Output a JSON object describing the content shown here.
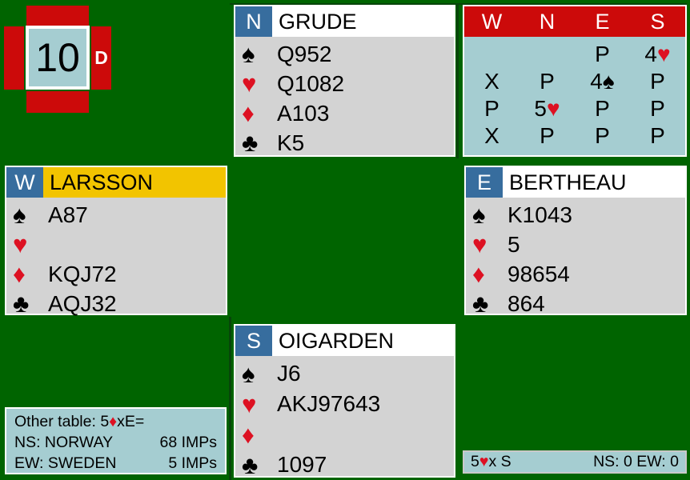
{
  "board": {
    "number": "10",
    "dealer_marker": "D"
  },
  "hands": {
    "north": {
      "seat": "N",
      "name": "GRUDE",
      "spades": "Q952",
      "hearts": "Q1082",
      "diamonds": "A103",
      "clubs": "K5"
    },
    "west": {
      "seat": "W",
      "name": "LARSSON",
      "spades": "A87",
      "hearts": "",
      "diamonds": "KQJ72",
      "clubs": "AQJ32"
    },
    "east": {
      "seat": "E",
      "name": "BERTHEAU",
      "spades": "K1043",
      "hearts": "5",
      "diamonds": "98654",
      "clubs": "864"
    },
    "south": {
      "seat": "S",
      "name": "OIGARDEN",
      "spades": "J6",
      "hearts": "AKJ97643",
      "diamonds": "",
      "clubs": "1097"
    }
  },
  "auction": {
    "columns": [
      "W",
      "N",
      "E",
      "S"
    ],
    "rows": [
      [
        "",
        "",
        "P",
        "4♥"
      ],
      [
        "X",
        "P",
        "4♠",
        "P"
      ],
      [
        "P",
        "5♥",
        "P",
        "P"
      ],
      [
        "X",
        "P",
        "P",
        "P"
      ]
    ]
  },
  "other_table": {
    "label": "Other table: ",
    "contract": "5♦xE=",
    "rows": [
      {
        "team": "NS: NORWAY",
        "imps": "68 IMPs"
      },
      {
        "team": "EW: SWEDEN",
        "imps": "5 IMPs"
      }
    ]
  },
  "status_bar": {
    "contract": "5♥x S",
    "score": "NS: 0 EW: 0"
  },
  "colors": {
    "table_green": "#006400",
    "dark_line": "#07450a",
    "panel_gray": "#d3d3d3",
    "light_blue": "#a5cdd1",
    "header_red": "#cc0a0a",
    "seat_blue": "#376d9e",
    "active_yellow": "#f2c400",
    "suit_red": "#dd1122"
  }
}
